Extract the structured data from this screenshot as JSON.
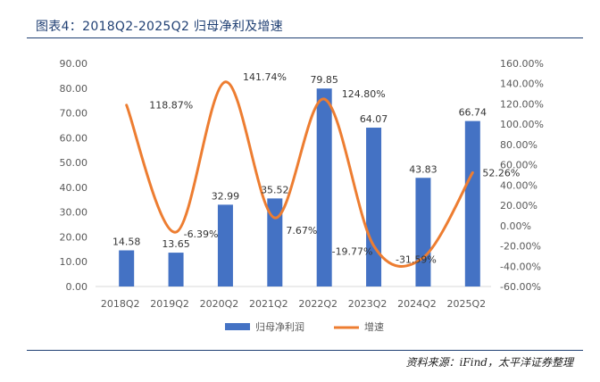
{
  "title": "图表4：2018Q2-2025Q2 归母净利及增速",
  "source": "资料来源：iFind，太平洋证券整理",
  "colors": {
    "bar": "#4472c4",
    "line": "#ed7d31",
    "title": "#1f3f73",
    "axis_text": "#595959"
  },
  "chart_data": {
    "type": "bar",
    "title": "2018Q2-2025Q2 归母净利及增速",
    "categories": [
      "2018Q2",
      "2019Q2",
      "2020Q2",
      "2021Q2",
      "2022Q2",
      "2023Q2",
      "2024Q2",
      "2025Q2"
    ],
    "series": [
      {
        "name": "归母净利润",
        "type": "bar",
        "axis": "left",
        "values": [
          14.58,
          13.65,
          32.99,
          35.52,
          79.85,
          64.07,
          43.83,
          66.74
        ],
        "labels": [
          "14.58",
          "13.65",
          "32.99",
          "35.52",
          "79.85",
          "64.07",
          "43.83",
          "66.74"
        ]
      },
      {
        "name": "增速",
        "type": "line",
        "smooth": true,
        "axis": "right",
        "values": [
          118.87,
          -6.39,
          141.74,
          7.67,
          124.8,
          -19.77,
          -31.59,
          52.26
        ],
        "labels": [
          "118.87%",
          "-6.39%",
          "141.74%",
          "7.67%",
          "124.80%",
          "-19.77%",
          "-31.59%",
          "52.26%"
        ]
      }
    ],
    "ylim_left": [
      0,
      90
    ],
    "ylim_right": [
      -60,
      160
    ],
    "left_ticks": [
      "0.00",
      "10.00",
      "20.00",
      "30.00",
      "40.00",
      "50.00",
      "60.00",
      "70.00",
      "80.00",
      "90.00"
    ],
    "right_ticks": [
      "-60.00%",
      "-40.00%",
      "-20.00%",
      "0.00%",
      "20.00%",
      "40.00%",
      "60.00%",
      "80.00%",
      "100.00%",
      "120.00%",
      "140.00%",
      "160.00%"
    ],
    "legend": [
      "归母净利润",
      "增速"
    ],
    "legend_position": "bottom",
    "grid": false
  }
}
